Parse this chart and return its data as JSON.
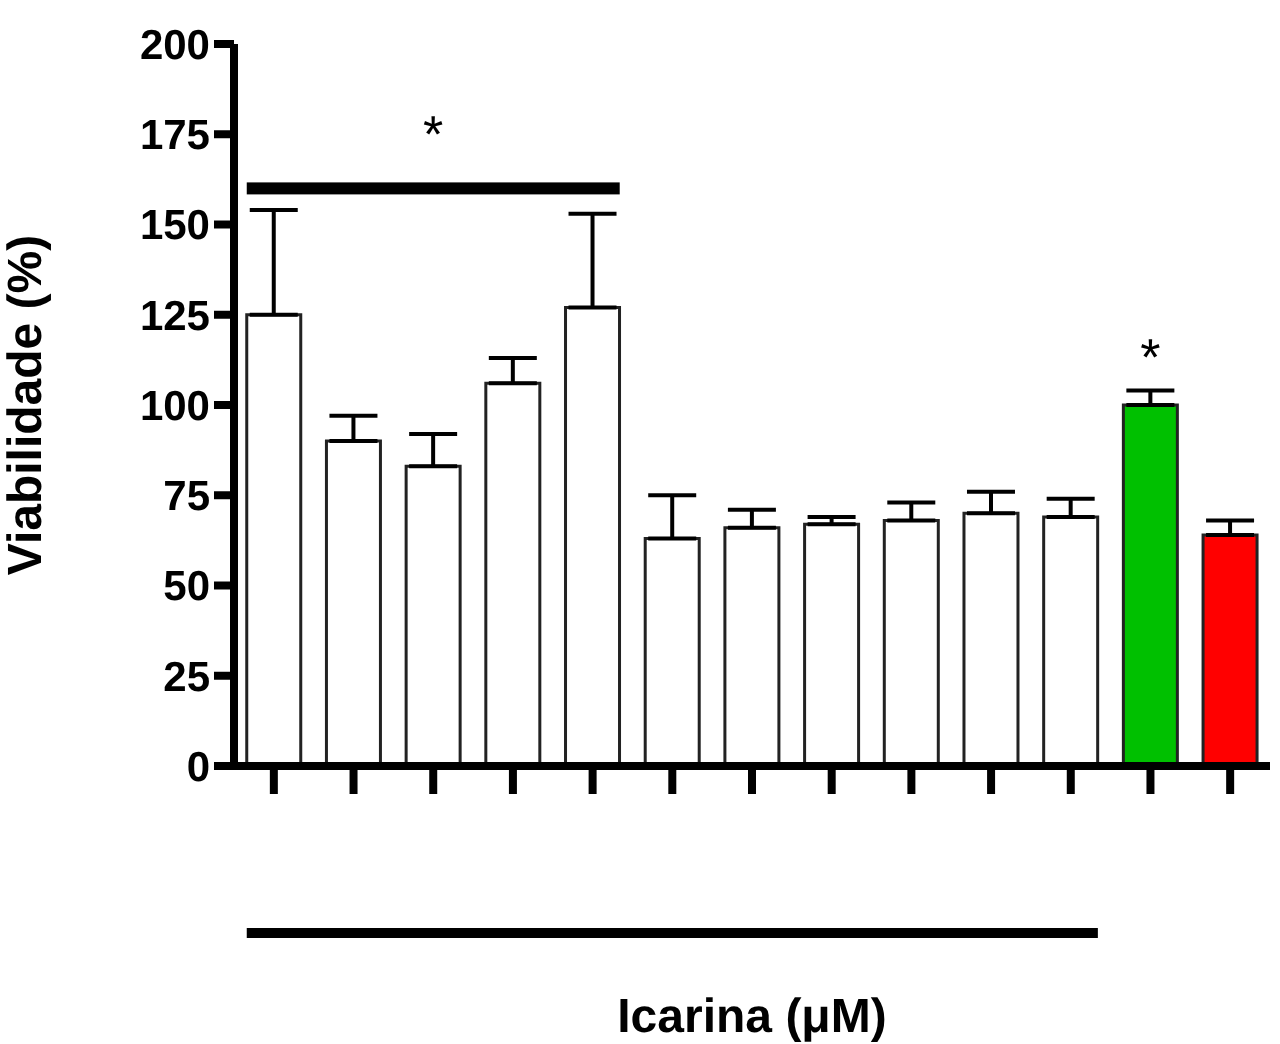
{
  "chart_data": {
    "type": "bar",
    "ylabel": "Viabilidade (%)",
    "xlabel": "Icarina (μM)",
    "categories": [
      null,
      null,
      null,
      null,
      null,
      null,
      null,
      null,
      null,
      null,
      null,
      null,
      null
    ],
    "values": [
      125,
      90,
      83,
      106,
      127,
      63,
      66,
      67,
      68,
      70,
      69,
      100,
      64
    ],
    "errors": [
      [
        125,
        154
      ],
      [
        90,
        97
      ],
      [
        83,
        92
      ],
      [
        106,
        113
      ],
      [
        127,
        153
      ],
      [
        63,
        75
      ],
      [
        66,
        71
      ],
      [
        67,
        69
      ],
      [
        68,
        73
      ],
      [
        70,
        76
      ],
      [
        69,
        74
      ],
      [
        100,
        104
      ],
      [
        64,
        68
      ]
    ],
    "colors": [
      "#ffffff",
      "#ffffff",
      "#ffffff",
      "#ffffff",
      "#ffffff",
      "#ffffff",
      "#ffffff",
      "#ffffff",
      "#ffffff",
      "#ffffff",
      "#ffffff",
      "#00c000",
      "#ff0000"
    ],
    "ylim": [
      0,
      200
    ],
    "yticks": [
      0,
      25,
      50,
      75,
      100,
      125,
      150,
      175,
      200
    ],
    "annotations": [
      "*",
      "*"
    ]
  }
}
